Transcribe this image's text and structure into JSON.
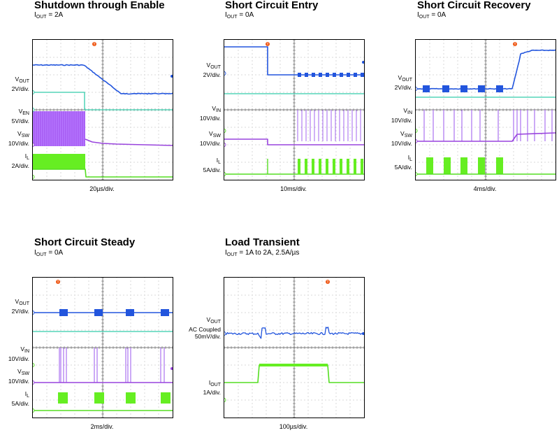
{
  "panels": [
    {
      "id": "p1",
      "title": "Shutdown through  Enable",
      "sub_main": "I",
      "sub_subscript": "OUT",
      "sub_rest": " = 2A",
      "timebase": "20µs/div.",
      "channel_labels": [
        {
          "main": "V",
          "subscript": "OUT",
          "scale": "2V/div."
        },
        {
          "main": "V",
          "subscript": "EN",
          "scale": "5V/div."
        },
        {
          "main": "V",
          "subscript": "SW",
          "scale": "10V/div."
        },
        {
          "main": "I",
          "subscript": "L",
          "scale": "2A/div."
        }
      ]
    },
    {
      "id": "p2",
      "title": "Short Circuit Entry",
      "sub_main": "I",
      "sub_subscript": "OUT",
      "sub_rest": " = 0A",
      "timebase": "10ms/div.",
      "channel_labels": [
        {
          "main": "V",
          "subscript": "OUT",
          "scale": "2V/div."
        },
        {
          "main": "V",
          "subscript": "IN",
          "scale": "10V/div."
        },
        {
          "main": "V",
          "subscript": "SW",
          "scale": "10V/div."
        },
        {
          "main": "I",
          "subscript": "L",
          "scale": "5A/div."
        }
      ]
    },
    {
      "id": "p3",
      "title": "Short Circuit Recovery",
      "sub_main": "I",
      "sub_subscript": "OUT",
      "sub_rest": " = 0A",
      "timebase": "4ms/div.",
      "channel_labels": [
        {
          "main": "V",
          "subscript": "OUT",
          "scale": "2V/div."
        },
        {
          "main": "V",
          "subscript": "IN",
          "scale": "10V/div."
        },
        {
          "main": "V",
          "subscript": "SW",
          "scale": "10V/div."
        },
        {
          "main": "I",
          "subscript": "L",
          "scale": "5A/div."
        }
      ]
    },
    {
      "id": "p4",
      "title": "Short Circuit Steady",
      "sub_main": "I",
      "sub_subscript": "OUT",
      "sub_rest": " = 0A",
      "timebase": "2ms/div.",
      "channel_labels": [
        {
          "main": "V",
          "subscript": "OUT",
          "scale": "2V/div."
        },
        {
          "main": "V",
          "subscript": "IN",
          "scale": "10V/div."
        },
        {
          "main": "V",
          "subscript": "SW",
          "scale": "10V/div."
        },
        {
          "main": "I",
          "subscript": "L",
          "scale": "5A/div."
        }
      ]
    },
    {
      "id": "p5",
      "title": "Load Transient",
      "sub_main": "I",
      "sub_subscript": "OUT",
      "sub_rest": " = 1A to 2A, 2.5A/µs",
      "timebase": "100µs/div.",
      "channel_labels": [
        {
          "main": "V",
          "subscript": "OUT",
          "scale": "AC Coupled\n50mV/div."
        },
        {
          "main": "I",
          "subscript": "OUT",
          "scale": "1A/div."
        }
      ]
    }
  ],
  "colors": {
    "vout": "#2255dd",
    "ven": "#33ccaa",
    "vin": "#9955ee",
    "vsw": "#9944dd",
    "il": "#55dd22",
    "trigger": "#ee5511",
    "grid": "#888888"
  },
  "chart_data": [
    {
      "type": "line",
      "title": "Shutdown through  Enable",
      "xlabel": "20µs/div.",
      "x_unit": "div",
      "series": [
        {
          "name": "VOUT",
          "points": [
            [
              0,
              3.6
            ],
            [
              3.3,
              3.6
            ],
            [
              4.5,
              2.2
            ],
            [
              5.5,
              1.5
            ],
            [
              10,
              1.5
            ]
          ]
        },
        {
          "name": "VEN",
          "points": [
            [
              0,
              5
            ],
            [
              3.0,
              5
            ],
            [
              3.0,
              0
            ],
            [
              10,
              0
            ]
          ]
        },
        {
          "name": "VSW",
          "points": [
            [
              0,
              12
            ],
            [
              3.0,
              12
            ],
            [
              3.5,
              3
            ],
            [
              5,
              1
            ],
            [
              10,
              0
            ]
          ]
        },
        {
          "name": "IL",
          "points": [
            [
              0,
              2.2
            ],
            [
              3.0,
              2.2
            ],
            [
              3.05,
              0
            ],
            [
              10,
              0
            ]
          ]
        }
      ]
    },
    {
      "type": "line",
      "title": "Short Circuit Entry",
      "xlabel": "10ms/div.",
      "x_unit": "div",
      "series": [
        {
          "name": "VOUT",
          "points": [
            [
              0,
              5
            ],
            [
              2.5,
              5
            ],
            [
              2.5,
              1.4
            ],
            [
              10,
              1.4
            ]
          ]
        },
        {
          "name": "VIN",
          "points": [
            [
              0,
              12
            ],
            [
              10,
              12
            ]
          ]
        },
        {
          "name": "VSW",
          "points": [
            [
              0,
              5
            ],
            [
              2.5,
              5
            ],
            [
              2.5,
              0
            ],
            [
              10,
              0
            ]
          ]
        },
        {
          "name": "IL",
          "points": [
            [
              0,
              0
            ],
            [
              10,
              0
            ]
          ]
        }
      ]
    },
    {
      "type": "line",
      "title": "Short Circuit Recovery",
      "xlabel": "4ms/div.",
      "x_unit": "div",
      "series": [
        {
          "name": "VOUT",
          "points": [
            [
              0,
              0.2
            ],
            [
              5.8,
              0.2
            ],
            [
              6.2,
              3
            ],
            [
              6.7,
              3.6
            ],
            [
              10,
              3.6
            ]
          ]
        },
        {
          "name": "VIN",
          "points": [
            [
              0,
              12
            ],
            [
              10,
              12
            ]
          ]
        },
        {
          "name": "VSW",
          "points": [
            [
              0,
              0
            ],
            [
              5.8,
              0
            ],
            [
              6.2,
              12
            ],
            [
              10,
              12
            ]
          ]
        },
        {
          "name": "IL",
          "points": [
            [
              0,
              0
            ],
            [
              10,
              0
            ]
          ]
        }
      ]
    },
    {
      "type": "line",
      "title": "Short Circuit Steady",
      "xlabel": "2ms/div.",
      "x_unit": "div",
      "series": [
        {
          "name": "VOUT",
          "points": [
            [
              0,
              0.2
            ],
            [
              10,
              0.2
            ]
          ]
        },
        {
          "name": "VIN",
          "points": [
            [
              0,
              12
            ],
            [
              10,
              12
            ]
          ]
        },
        {
          "name": "VSW",
          "points": [
            [
              0,
              0
            ],
            [
              10,
              0
            ]
          ]
        },
        {
          "name": "IL",
          "points": [
            [
              0,
              0
            ],
            [
              10,
              0
            ]
          ]
        }
      ]
    },
    {
      "type": "line",
      "title": "Load Transient",
      "xlabel": "100µs/div.",
      "x_unit": "div",
      "series": [
        {
          "name": "VOUT",
          "points": [
            [
              0,
              0
            ],
            [
              2.5,
              0
            ],
            [
              2.6,
              -50
            ],
            [
              2.9,
              20
            ],
            [
              3.2,
              0
            ],
            [
              7.3,
              0
            ],
            [
              7.4,
              30
            ],
            [
              7.7,
              -10
            ],
            [
              10,
              0
            ]
          ]
        },
        {
          "name": "IOUT",
          "points": [
            [
              0,
              1
            ],
            [
              2.5,
              1
            ],
            [
              2.6,
              2
            ],
            [
              7.5,
              2
            ],
            [
              7.6,
              1
            ],
            [
              10,
              1
            ]
          ]
        }
      ]
    }
  ]
}
